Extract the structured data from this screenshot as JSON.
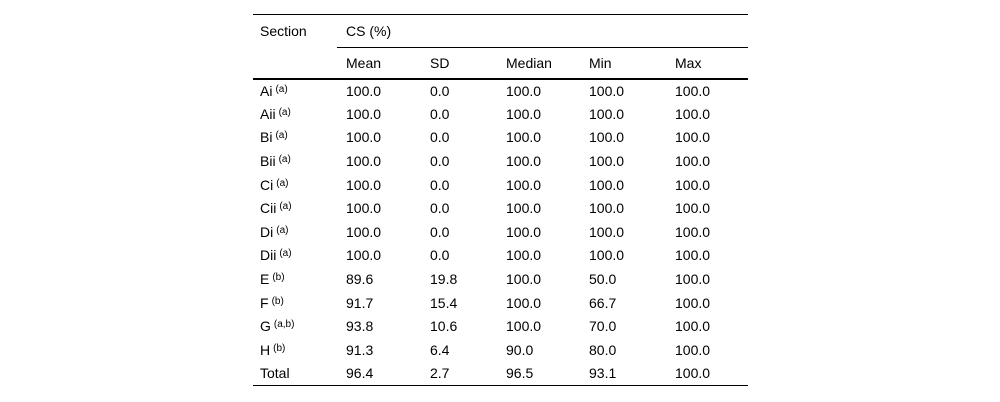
{
  "colors": {
    "background": "#ffffff",
    "text": "#000000",
    "rule": "#000000"
  },
  "chart_data": {
    "type": "table",
    "row_header": "Section",
    "col_group_header": "CS (%)",
    "columns": [
      "Mean",
      "SD",
      "Median",
      "Min",
      "Max"
    ],
    "rows": [
      {
        "label": "Ai",
        "sup": "(a)",
        "values": [
          "100.0",
          "0.0",
          "100.0",
          "100.0",
          "100.0"
        ]
      },
      {
        "label": "Aii",
        "sup": "(a)",
        "values": [
          "100.0",
          "0.0",
          "100.0",
          "100.0",
          "100.0"
        ]
      },
      {
        "label": "Bi",
        "sup": "(a)",
        "values": [
          "100.0",
          "0.0",
          "100.0",
          "100.0",
          "100.0"
        ]
      },
      {
        "label": "Bii",
        "sup": "(a)",
        "values": [
          "100.0",
          "0.0",
          "100.0",
          "100.0",
          "100.0"
        ]
      },
      {
        "label": "Ci",
        "sup": "(a)",
        "values": [
          "100.0",
          "0.0",
          "100.0",
          "100.0",
          "100.0"
        ]
      },
      {
        "label": "Cii",
        "sup": "(a)",
        "values": [
          "100.0",
          "0.0",
          "100.0",
          "100.0",
          "100.0"
        ]
      },
      {
        "label": "Di",
        "sup": "(a)",
        "values": [
          "100.0",
          "0.0",
          "100.0",
          "100.0",
          "100.0"
        ]
      },
      {
        "label": "Dii",
        "sup": "(a)",
        "values": [
          "100.0",
          "0.0",
          "100.0",
          "100.0",
          "100.0"
        ]
      },
      {
        "label": "E",
        "sup": "(b)",
        "values": [
          "89.6",
          "19.8",
          "100.0",
          "50.0",
          "100.0"
        ]
      },
      {
        "label": "F",
        "sup": "(b)",
        "values": [
          "91.7",
          "15.4",
          "100.0",
          "66.7",
          "100.0"
        ]
      },
      {
        "label": "G",
        "sup": "(a,b)",
        "values": [
          "93.8",
          "10.6",
          "100.0",
          "70.0",
          "100.0"
        ]
      },
      {
        "label": "H",
        "sup": "(b)",
        "values": [
          "91.3",
          "6.4",
          "90.0",
          "80.0",
          "100.0"
        ]
      },
      {
        "label": "Total",
        "sup": "",
        "values": [
          "96.4",
          "2.7",
          "96.5",
          "93.1",
          "100.0"
        ]
      }
    ]
  }
}
